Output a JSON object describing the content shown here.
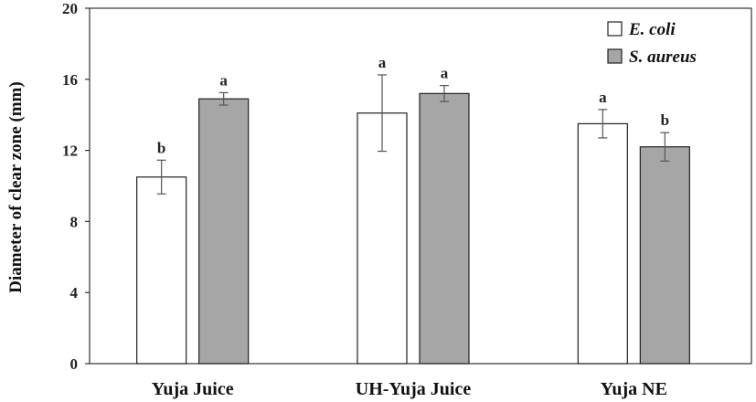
{
  "chart_data": {
    "type": "bar",
    "categories": [
      "Yuja Juice",
      "UH-Yuja Juice",
      "Yuja NE"
    ],
    "series": [
      {
        "name": "E. coli",
        "color": "#ffffff",
        "values": [
          10.5,
          14.1,
          13.5
        ],
        "errors": [
          0.95,
          2.15,
          0.8
        ],
        "significance": [
          "b",
          "a",
          "a"
        ]
      },
      {
        "name": "S. aureus",
        "color": "#a6a6a6",
        "values": [
          14.9,
          15.2,
          12.2
        ],
        "errors": [
          0.35,
          0.45,
          0.8
        ],
        "significance": [
          "a",
          "a",
          "b"
        ]
      }
    ],
    "xlabel": "",
    "ylabel": "Diameter of clear zone (mm)",
    "ylim": [
      0,
      20
    ],
    "yticks": [
      0,
      4,
      8,
      12,
      16,
      20
    ],
    "grid": false,
    "legend_position": "top-right"
  }
}
